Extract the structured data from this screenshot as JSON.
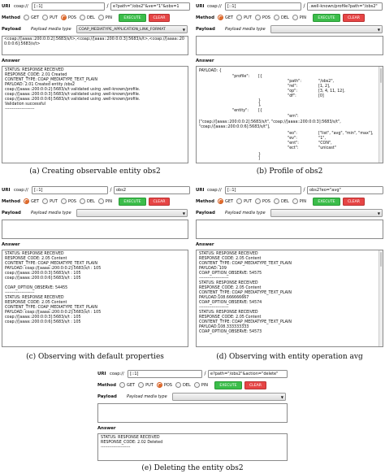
{
  "colors": {
    "execute": "#3bbd4a",
    "clear": "#e64545",
    "radio_selected": "#e06a2a"
  },
  "panels": [
    {
      "uri_label": "URI",
      "scheme": "coap://",
      "host": "[::1]",
      "slash": "/",
      "path": "e?path=\"/obs2\"&ve=\"1\"&obs=1",
      "method_label": "Method",
      "methods": [
        "GET",
        "PUT",
        "POS",
        "DEL",
        "PIN"
      ],
      "execute": "EXECUTE",
      "clear": "CLEAR",
      "payload_label": "Payload",
      "media_type_label": "Payload media type",
      "media_type": "COAP_MEDIATYPE_APPLICATION_LINK_FORMAT",
      "payload_text": "<coap://[aaaa::200:0:0:2]:5683/s/t>,<coap://[aaaa::200:0:0:3]:5683/s/t>,<coap://[aaaa::200:0:0:6]:5683/s/t>",
      "answer_label": "Answer",
      "answer_text": "STATUS: RESPONSE RECEIVED\nRESPONSE_CODE: 2.01 Created\nCONTENT_TYPE: COAP_MEDIATYPE_TEXT_PLAIN\nPAYLOAD: 2.01 Created entity /obs2\ncoap://[aaaa::200:0:0:2]:5683/s/t validated using .well-known/profile.\ncoap://[aaaa::200:0:0:3]:5683/s/t validated using .well-known/profile.\ncoap://[aaaa::200:0:0:6]:5683/s/t validated using .well-known/profile.\nValidation successful\n---------------------",
      "caption": "(a) Creating observable entity obs2"
    },
    {
      "uri_label": "URI",
      "scheme": "coap://",
      "host": "[::1]",
      "slash": "/",
      "path": ".well-known/profile?path=\"/obs2\"",
      "method_label": "Method",
      "methods": [
        "GET",
        "PUT",
        "POS",
        "DEL",
        "PIN"
      ],
      "execute": "EXECUTE",
      "clear": "CLEAR",
      "payload_label": "Payload",
      "media_type_label": "Payload media type",
      "answer_label": "Answer",
      "answer_head": "PAYLOAD: {",
      "profile_rows": [
        {
          "k": "\"profile\":",
          "v": "[{"
        },
        {
          "k": "",
          "v": "\"path\":"
        },
        {
          "k": "",
          "v": "\"rel\":"
        },
        {
          "k": "",
          "v": "\"op\":"
        },
        {
          "k": "",
          "v": "\"df\":"
        }
      ],
      "profile_vals": [
        "\"/obs2\",",
        "[1, 2],",
        "[3, 4, 11, 12],",
        "[0]"
      ],
      "entity_key": "\"entity\":",
      "em_key": "\"em\":",
      "em_val": "[\"coap://[aaaa::200:0:0:2]:5683/s/t\", \"coap://[aaaa::200:0:0:3]:5683/s/t\", \"coap://[aaaa::200:0:0:6]:5683/s/t\"],",
      "ent_rows": [
        {
          "k": "\"eo\":",
          "v": "[\"list\", \"avg\", \"min\", \"max\"],"
        },
        {
          "k": "\"ev\":",
          "v": "\"1\","
        },
        {
          "k": "\"ent\":",
          "v": "\"CON\","
        },
        {
          "k": "\"ect\":",
          "v": "\"unicast\""
        }
      ],
      "caption": "(b) Profile of obs2"
    },
    {
      "uri_label": "URI",
      "scheme": "coap://",
      "host": "[::1]",
      "slash": "/",
      "path": "obs2",
      "method_label": "Method",
      "methods": [
        "GET",
        "PUT",
        "POS",
        "DEL",
        "PIN"
      ],
      "execute": "EXECUTE",
      "clear": "CLEAR",
      "payload_label": "Payload",
      "media_type_label": "Payload media type",
      "answer_label": "Answer",
      "answer_text": "STATUS: RESPONSE RECEIVED\nRESPONSE_CODE: 2.05 Content\nCONTENT_TYPE: COAP_MEDIATYPE_TEXT_PLAIN\nPAYLOAD: coap://[aaaa::200:0:0:2]:5683/s/t : 105\ncoap://[aaaa::200:0:0:3]:5683/s/t : 105\ncoap://[aaaa::200:0:0:6]:5683/s/t : 105\n\nCOAP_OPTION_OBSERVE: 54455\n---------------------\nSTATUS: RESPONSE RECEIVED\nRESPONSE_CODE: 2.05 Content\nCONTENT_TYPE: COAP_MEDIATYPE_TEXT_PLAIN\nPAYLOAD: coap://[aaaa::200:0:0:2]:5683/s/t : 105\ncoap://[aaaa::200:0:0:3]:5683/s/t : 105\ncoap://[aaaa::200:0:0:6]:5683/s/t : 105",
      "caption": "(c) Observing with default properties"
    },
    {
      "uri_label": "URI",
      "scheme": "coap://",
      "host": "[::1]",
      "slash": "/",
      "path": "obs2?eo=\"avg\"",
      "method_label": "Method",
      "methods": [
        "GET",
        "PUT",
        "POS",
        "DEL",
        "PIN"
      ],
      "execute": "EXECUTE",
      "clear": "CLEAR",
      "payload_label": "Payload",
      "media_type_label": "Payload media type",
      "answer_label": "Answer",
      "answer_text": "STATUS: RESPONSE RECEIVED\nRESPONSE_CODE: 2.05 Content\nCONTENT_TYPE: COAP_MEDIATYPE_TEXT_PLAIN\nPAYLOAD: 109\nCOAP_OPTION_OBSERVE: 54575\n---------------------\nSTATUS: RESPONSE RECEIVED\nRESPONSE_CODE: 2.05 Content\nCONTENT_TYPE: COAP_MEDIATYPE_TEXT_PLAIN\nPAYLOAD:108.666666667\nCOAP_OPTION_OBSERVE: 54574\n---------------------\nSTATUS: RESPONSE RECEIVED\nRESPONSE_CODE: 2.05 Content\nCONTENT_TYPE: COAP_MEDIATYPE_TEXT_PLAIN\nPAYLOAD:108.333333333\nCOAP_OPTION_OBSERVE: 54573",
      "caption": "(d) Observing with entity operation avg"
    },
    {
      "uri_label": "URI",
      "scheme": "coap://",
      "host": "[::1]",
      "slash": "/",
      "path": "e?path=\"/obs2\"&action=\"delete\"",
      "method_label": "Method",
      "methods": [
        "GET",
        "PUT",
        "POS",
        "DEL",
        "PIN"
      ],
      "execute": "EXECUTE",
      "clear": "CLEAR",
      "payload_label": "Payload",
      "media_type_label": "Payload media type",
      "answer_label": "Answer",
      "answer_text": "STATUS: RESPONSE RECEIVED\nRESPONSE_CODE: 2.02 Deleted\n---------------------",
      "caption": "(e) Deleting the entity obs2"
    }
  ]
}
